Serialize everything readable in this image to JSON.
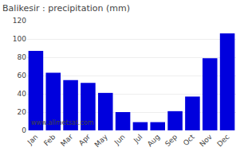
{
  "chart_data": {
    "type": "bar",
    "title": "Balikesir : precipitation (mm)",
    "categories": [
      "Jan",
      "Feb",
      "Mar",
      "Apr",
      "May",
      "Jun",
      "Jul",
      "Aug",
      "Sep",
      "Oct",
      "Nov",
      "Dec"
    ],
    "values": [
      87,
      63,
      55,
      52,
      41,
      20,
      9,
      9,
      21,
      37,
      79,
      106
    ],
    "color": "#0000dd",
    "ylim": [
      0,
      120
    ],
    "yticks": [
      0,
      20,
      40,
      60,
      80,
      100,
      120
    ],
    "grid": true,
    "annotations": [
      "www.allmetsat.com"
    ]
  }
}
